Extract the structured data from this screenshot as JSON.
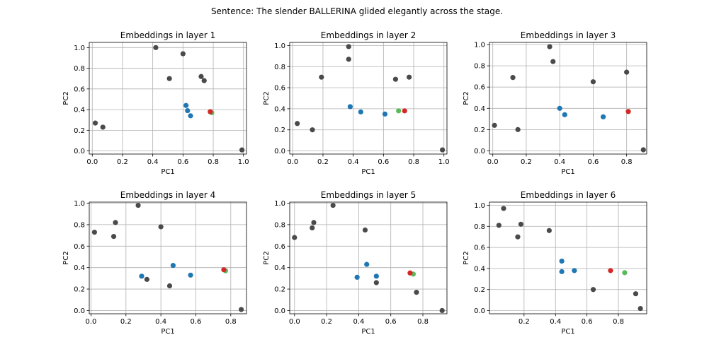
{
  "figure": {
    "suptitle": "Sentence: The slender BALLERINA glided elegantly across the stage."
  },
  "colors": {
    "gray": "#4a4a4a",
    "blue": "#1f77b4",
    "red": "#d62728",
    "green": "#5cb85c",
    "grid": "#b0b0b0"
  },
  "chart_data": [
    {
      "type": "scatter",
      "title": "Embeddings in layer 1",
      "xlabel": "PC1",
      "ylabel": "PC2",
      "xlim": [
        -0.02,
        1.02
      ],
      "ylim": [
        -0.03,
        1.05
      ],
      "xticks": [
        0.0,
        0.2,
        0.4,
        0.6,
        0.8,
        1.0
      ],
      "yticks": [
        0.0,
        0.2,
        0.4,
        0.6,
        0.8,
        1.0
      ],
      "grid": true,
      "points": [
        {
          "x": 0.42,
          "y": 1.0,
          "color": "gray"
        },
        {
          "x": 0.6,
          "y": 0.94,
          "color": "gray"
        },
        {
          "x": 0.51,
          "y": 0.7,
          "color": "gray"
        },
        {
          "x": 0.72,
          "y": 0.72,
          "color": "gray"
        },
        {
          "x": 0.74,
          "y": 0.68,
          "color": "gray"
        },
        {
          "x": 0.02,
          "y": 0.27,
          "color": "gray"
        },
        {
          "x": 0.07,
          "y": 0.23,
          "color": "gray"
        },
        {
          "x": 0.99,
          "y": 0.01,
          "color": "gray"
        },
        {
          "x": 0.62,
          "y": 0.44,
          "color": "blue"
        },
        {
          "x": 0.63,
          "y": 0.39,
          "color": "blue"
        },
        {
          "x": 0.65,
          "y": 0.34,
          "color": "blue"
        },
        {
          "x": 0.79,
          "y": 0.37,
          "color": "green"
        },
        {
          "x": 0.78,
          "y": 0.38,
          "color": "red"
        }
      ]
    },
    {
      "type": "scatter",
      "title": "Embeddings in layer 2",
      "xlabel": "PC1",
      "ylabel": "PC2",
      "xlim": [
        -0.02,
        1.02
      ],
      "ylim": [
        -0.03,
        1.03
      ],
      "xticks": [
        0.0,
        0.2,
        0.4,
        0.6,
        0.8,
        1.0
      ],
      "yticks": [
        0.0,
        0.2,
        0.4,
        0.6,
        0.8,
        1.0
      ],
      "grid": true,
      "points": [
        {
          "x": 0.37,
          "y": 0.99,
          "color": "gray"
        },
        {
          "x": 0.37,
          "y": 0.87,
          "color": "gray"
        },
        {
          "x": 0.19,
          "y": 0.7,
          "color": "gray"
        },
        {
          "x": 0.68,
          "y": 0.68,
          "color": "gray"
        },
        {
          "x": 0.77,
          "y": 0.7,
          "color": "gray"
        },
        {
          "x": 0.03,
          "y": 0.26,
          "color": "gray"
        },
        {
          "x": 0.13,
          "y": 0.2,
          "color": "gray"
        },
        {
          "x": 0.99,
          "y": 0.01,
          "color": "gray"
        },
        {
          "x": 0.38,
          "y": 0.42,
          "color": "blue"
        },
        {
          "x": 0.45,
          "y": 0.37,
          "color": "blue"
        },
        {
          "x": 0.61,
          "y": 0.35,
          "color": "blue"
        },
        {
          "x": 0.7,
          "y": 0.38,
          "color": "green"
        },
        {
          "x": 0.74,
          "y": 0.38,
          "color": "red"
        }
      ]
    },
    {
      "type": "scatter",
      "title": "Embeddings in layer 3",
      "xlabel": "PC1",
      "ylabel": "PC2",
      "xlim": [
        -0.02,
        0.92
      ],
      "ylim": [
        -0.03,
        1.02
      ],
      "xticks": [
        0.0,
        0.2,
        0.4,
        0.6,
        0.8
      ],
      "yticks": [
        0.0,
        0.2,
        0.4,
        0.6,
        0.8,
        1.0
      ],
      "grid": true,
      "points": [
        {
          "x": 0.34,
          "y": 0.98,
          "color": "gray"
        },
        {
          "x": 0.36,
          "y": 0.84,
          "color": "gray"
        },
        {
          "x": 0.12,
          "y": 0.69,
          "color": "gray"
        },
        {
          "x": 0.6,
          "y": 0.65,
          "color": "gray"
        },
        {
          "x": 0.8,
          "y": 0.74,
          "color": "gray"
        },
        {
          "x": 0.01,
          "y": 0.24,
          "color": "gray"
        },
        {
          "x": 0.15,
          "y": 0.2,
          "color": "gray"
        },
        {
          "x": 0.9,
          "y": 0.01,
          "color": "gray"
        },
        {
          "x": 0.4,
          "y": 0.4,
          "color": "blue"
        },
        {
          "x": 0.43,
          "y": 0.34,
          "color": "blue"
        },
        {
          "x": 0.66,
          "y": 0.32,
          "color": "blue"
        },
        {
          "x": 0.81,
          "y": 0.37,
          "color": "green"
        },
        {
          "x": 0.81,
          "y": 0.37,
          "color": "red"
        }
      ]
    },
    {
      "type": "scatter",
      "title": "Embeddings in layer 4",
      "xlabel": "PC1",
      "ylabel": "PC2",
      "xlim": [
        -0.01,
        0.89
      ],
      "ylim": [
        -0.03,
        1.01
      ],
      "xticks": [
        0.0,
        0.2,
        0.4,
        0.6,
        0.8
      ],
      "yticks": [
        0.0,
        0.2,
        0.4,
        0.6,
        0.8,
        1.0
      ],
      "grid": true,
      "points": [
        {
          "x": 0.27,
          "y": 0.98,
          "color": "gray"
        },
        {
          "x": 0.14,
          "y": 0.82,
          "color": "gray"
        },
        {
          "x": 0.02,
          "y": 0.73,
          "color": "gray"
        },
        {
          "x": 0.13,
          "y": 0.69,
          "color": "gray"
        },
        {
          "x": 0.4,
          "y": 0.78,
          "color": "gray"
        },
        {
          "x": 0.32,
          "y": 0.29,
          "color": "gray"
        },
        {
          "x": 0.45,
          "y": 0.23,
          "color": "gray"
        },
        {
          "x": 0.86,
          "y": 0.01,
          "color": "gray"
        },
        {
          "x": 0.47,
          "y": 0.42,
          "color": "blue"
        },
        {
          "x": 0.29,
          "y": 0.32,
          "color": "blue"
        },
        {
          "x": 0.57,
          "y": 0.33,
          "color": "blue"
        },
        {
          "x": 0.77,
          "y": 0.37,
          "color": "green"
        },
        {
          "x": 0.76,
          "y": 0.38,
          "color": "red"
        }
      ]
    },
    {
      "type": "scatter",
      "title": "Embeddings in layer 5",
      "xlabel": "PC1",
      "ylabel": "PC2",
      "xlim": [
        -0.03,
        0.95
      ],
      "ylim": [
        -0.03,
        1.01
      ],
      "xticks": [
        0.0,
        0.2,
        0.4,
        0.6,
        0.8
      ],
      "yticks": [
        0.0,
        0.2,
        0.4,
        0.6,
        0.8,
        1.0
      ],
      "grid": true,
      "points": [
        {
          "x": 0.24,
          "y": 0.98,
          "color": "gray"
        },
        {
          "x": 0.12,
          "y": 0.82,
          "color": "gray"
        },
        {
          "x": 0.11,
          "y": 0.77,
          "color": "gray"
        },
        {
          "x": 0.44,
          "y": 0.75,
          "color": "gray"
        },
        {
          "x": 0.0,
          "y": 0.68,
          "color": "gray"
        },
        {
          "x": 0.51,
          "y": 0.26,
          "color": "gray"
        },
        {
          "x": 0.76,
          "y": 0.17,
          "color": "gray"
        },
        {
          "x": 0.92,
          "y": 0.0,
          "color": "gray"
        },
        {
          "x": 0.45,
          "y": 0.43,
          "color": "blue"
        },
        {
          "x": 0.39,
          "y": 0.31,
          "color": "blue"
        },
        {
          "x": 0.51,
          "y": 0.32,
          "color": "blue"
        },
        {
          "x": 0.74,
          "y": 0.34,
          "color": "green"
        },
        {
          "x": 0.72,
          "y": 0.35,
          "color": "red"
        }
      ]
    },
    {
      "type": "scatter",
      "title": "Embeddings in layer 6",
      "xlabel": "PC1",
      "ylabel": "PC2",
      "xlim": [
        -0.02,
        0.98
      ],
      "ylim": [
        -0.03,
        1.03
      ],
      "xticks": [
        0.2,
        0.4,
        0.6,
        0.8
      ],
      "yticks": [
        0.0,
        0.2,
        0.4,
        0.6,
        0.8,
        1.0
      ],
      "grid": true,
      "points": [
        {
          "x": 0.07,
          "y": 0.97,
          "color": "gray"
        },
        {
          "x": 0.04,
          "y": 0.81,
          "color": "gray"
        },
        {
          "x": 0.18,
          "y": 0.82,
          "color": "gray"
        },
        {
          "x": 0.16,
          "y": 0.7,
          "color": "gray"
        },
        {
          "x": 0.36,
          "y": 0.76,
          "color": "gray"
        },
        {
          "x": 0.64,
          "y": 0.2,
          "color": "gray"
        },
        {
          "x": 0.91,
          "y": 0.16,
          "color": "gray"
        },
        {
          "x": 0.94,
          "y": 0.02,
          "color": "gray"
        },
        {
          "x": 0.44,
          "y": 0.47,
          "color": "blue"
        },
        {
          "x": 0.44,
          "y": 0.37,
          "color": "blue"
        },
        {
          "x": 0.52,
          "y": 0.38,
          "color": "blue"
        },
        {
          "x": 0.84,
          "y": 0.36,
          "color": "green"
        },
        {
          "x": 0.75,
          "y": 0.38,
          "color": "red"
        }
      ]
    }
  ]
}
